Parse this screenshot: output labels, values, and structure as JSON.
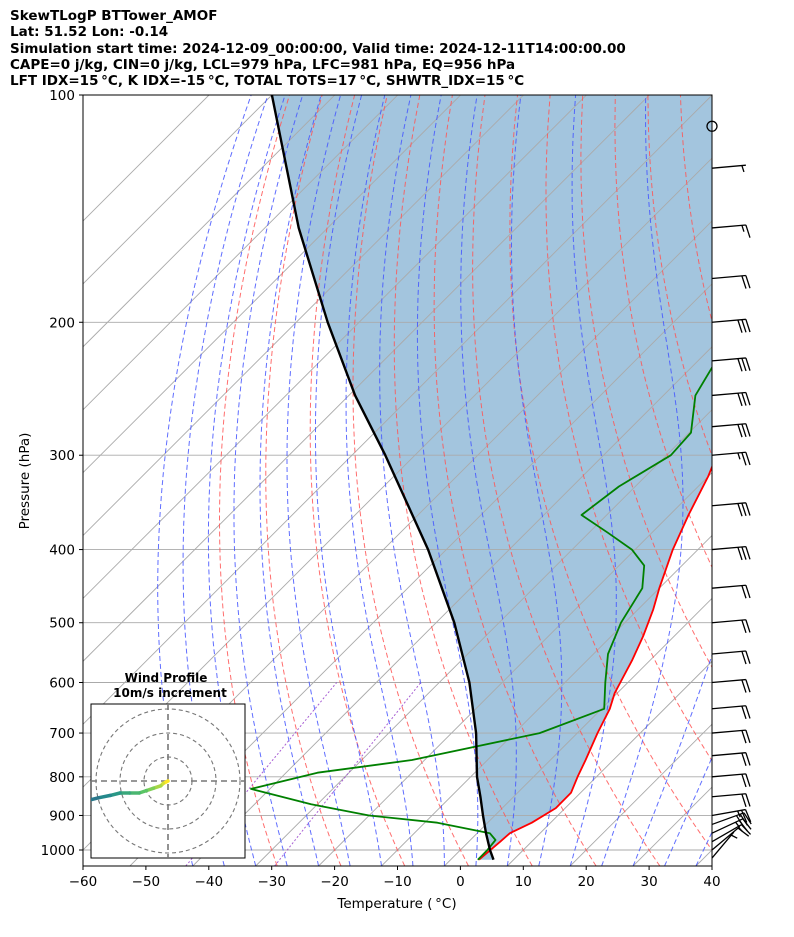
{
  "header": {
    "line1": "SkewTLogP BTTower_AMOF",
    "line2": "Lat: 51.52   Lon: -0.14",
    "line3": "Simulation start time: 2024-12-09_00:00:00, Valid time: 2024-12-11T14:00:00.00",
    "line4": "CAPE=0 j/kg, CIN=0 j/kg, LCL=979 hPa, LFC=981 hPa, EQ=956 hPa",
    "line5": "LFT IDX=15 °C, K IDX=-15 °C, TOTAL TOTS=17 °C, SHWTR_IDX=15 °C"
  },
  "colors": {
    "temperature": "#ff0000",
    "dewpoint": "#008000",
    "parcel": "#000000",
    "cape_fill": "#a3c5de",
    "dry_adiabat": "#ff5555",
    "moist_adiabat": "#4455ff",
    "mixing_ratio": "#9944cc",
    "isotherm": "#aaaaaa"
  },
  "chart_data": {
    "type": "skewt",
    "xlabel": "Temperature ( °C)",
    "ylabel": "Pressure (hPa)",
    "xlim": [
      -60,
      40
    ],
    "ylim": [
      1050,
      100
    ],
    "x_ticks": [
      -60,
      -50,
      -40,
      -30,
      -20,
      -10,
      0,
      10,
      20,
      30,
      40
    ],
    "y_ticks": [
      1000,
      900,
      800,
      700,
      600,
      500,
      400,
      300,
      200,
      100
    ],
    "grid": true,
    "series": [
      {
        "name": "Temperature",
        "points": [
          [
            1030,
            4.5
          ],
          [
            975,
            5.0
          ],
          [
            950,
            5.2
          ],
          [
            920,
            7.0
          ],
          [
            880,
            8.5
          ],
          [
            840,
            8.5
          ],
          [
            800,
            7.0
          ],
          [
            760,
            5.6
          ],
          [
            700,
            3.2
          ],
          [
            650,
            1.3
          ],
          [
            620,
            -0.4
          ],
          [
            600,
            -1.2
          ],
          [
            560,
            -2.9
          ],
          [
            520,
            -5.0
          ],
          [
            480,
            -7.6
          ],
          [
            450,
            -10.0
          ],
          [
            400,
            -14.0
          ],
          [
            360,
            -17.0
          ],
          [
            320,
            -20.0
          ],
          [
            300,
            -22.0
          ],
          [
            270,
            -25.0
          ],
          [
            240,
            -29.0
          ],
          [
            215,
            -34.0
          ],
          [
            200,
            -37.0
          ],
          [
            190,
            -37.5
          ],
          [
            170,
            -32.0
          ],
          [
            140,
            -25.0
          ],
          [
            125,
            -24.0
          ],
          [
            110,
            -26.5
          ],
          [
            100,
            -29.0
          ]
        ]
      },
      {
        "name": "Dewpoint",
        "points": [
          [
            1030,
            4.3
          ],
          [
            1000,
            4.3
          ],
          [
            970,
            4.0
          ],
          [
            950,
            2.0
          ],
          [
            920,
            -8.0
          ],
          [
            900,
            -20.0
          ],
          [
            870,
            -31.0
          ],
          [
            830,
            -43.0
          ],
          [
            790,
            -35.0
          ],
          [
            760,
            -22.0
          ],
          [
            700,
            -6.0
          ],
          [
            650,
            0.4
          ],
          [
            600,
            -3.6
          ],
          [
            550,
            -7.7
          ],
          [
            500,
            -10.6
          ],
          [
            450,
            -12.7
          ],
          [
            420,
            -16.0
          ],
          [
            400,
            -20.5
          ],
          [
            380,
            -27.0
          ],
          [
            360,
            -34.0
          ],
          [
            330,
            -32.6
          ],
          [
            300,
            -29.3
          ],
          [
            280,
            -29.7
          ],
          [
            250,
            -34.9
          ],
          [
            220,
            -37.6
          ],
          [
            200,
            -41.0
          ],
          [
            180,
            -39.2
          ],
          [
            160,
            -35.5
          ],
          [
            145,
            -35.0
          ],
          [
            135,
            -36.0
          ],
          [
            120,
            -32.5
          ],
          [
            100,
            -26.0
          ]
        ]
      },
      {
        "name": "Parcel",
        "points": [
          [
            1030,
            6.8
          ],
          [
            1000,
            4.7
          ],
          [
            950,
            1.4
          ],
          [
            900,
            -1.9
          ],
          [
            850,
            -5.3
          ],
          [
            800,
            -9.0
          ],
          [
            700,
            -16.1
          ],
          [
            600,
            -25.2
          ],
          [
            500,
            -37.1
          ],
          [
            400,
            -52.9
          ],
          [
            300,
            -74.7
          ],
          [
            250,
            -89.0
          ],
          [
            200,
            -105.0
          ],
          [
            150,
            -124.6
          ],
          [
            100,
            -150.0
          ]
        ]
      }
    ],
    "inset": {
      "title": "Wind Profile",
      "subtitle": "10m/s increment",
      "type": "hodograph",
      "u": [
        0,
        -2,
        -3,
        -6,
        -9,
        -12,
        -16,
        -20,
        -24,
        -29,
        -33,
        -35,
        -35,
        -34,
        -33,
        -33
      ],
      "v": [
        0,
        -1,
        -2,
        -3,
        -4,
        -5,
        -5,
        -5,
        -6,
        -7,
        -8,
        -10,
        -12,
        -13,
        -14,
        -15
      ]
    },
    "wind_barbs": [
      {
        "p": 1025,
        "speed": 8,
        "dir": 220
      },
      {
        "p": 1000,
        "speed": 10,
        "dir": 230
      },
      {
        "p": 975,
        "speed": 15,
        "dir": 240
      },
      {
        "p": 950,
        "speed": 25,
        "dir": 245
      },
      {
        "p": 925,
        "speed": 30,
        "dir": 250
      },
      {
        "p": 900,
        "speed": 25,
        "dir": 260
      },
      {
        "p": 850,
        "speed": 20,
        "dir": 265
      },
      {
        "p": 800,
        "speed": 20,
        "dir": 265
      },
      {
        "p": 750,
        "speed": 20,
        "dir": 265
      },
      {
        "p": 700,
        "speed": 20,
        "dir": 265
      },
      {
        "p": 650,
        "speed": 20,
        "dir": 265
      },
      {
        "p": 600,
        "speed": 20,
        "dir": 265
      },
      {
        "p": 550,
        "speed": 20,
        "dir": 265
      },
      {
        "p": 500,
        "speed": 20,
        "dir": 265
      },
      {
        "p": 450,
        "speed": 20,
        "dir": 265
      },
      {
        "p": 400,
        "speed": 30,
        "dir": 265
      },
      {
        "p": 350,
        "speed": 30,
        "dir": 265
      },
      {
        "p": 300,
        "speed": 25,
        "dir": 265
      },
      {
        "p": 275,
        "speed": 30,
        "dir": 265
      },
      {
        "p": 250,
        "speed": 30,
        "dir": 265
      },
      {
        "p": 225,
        "speed": 30,
        "dir": 265
      },
      {
        "p": 200,
        "speed": 30,
        "dir": 265
      },
      {
        "p": 175,
        "speed": 20,
        "dir": 265
      },
      {
        "p": 150,
        "speed": 15,
        "dir": 265
      },
      {
        "p": 125,
        "speed": 5,
        "dir": 265
      },
      {
        "p": 110,
        "speed": 0,
        "dir": 0
      }
    ]
  }
}
